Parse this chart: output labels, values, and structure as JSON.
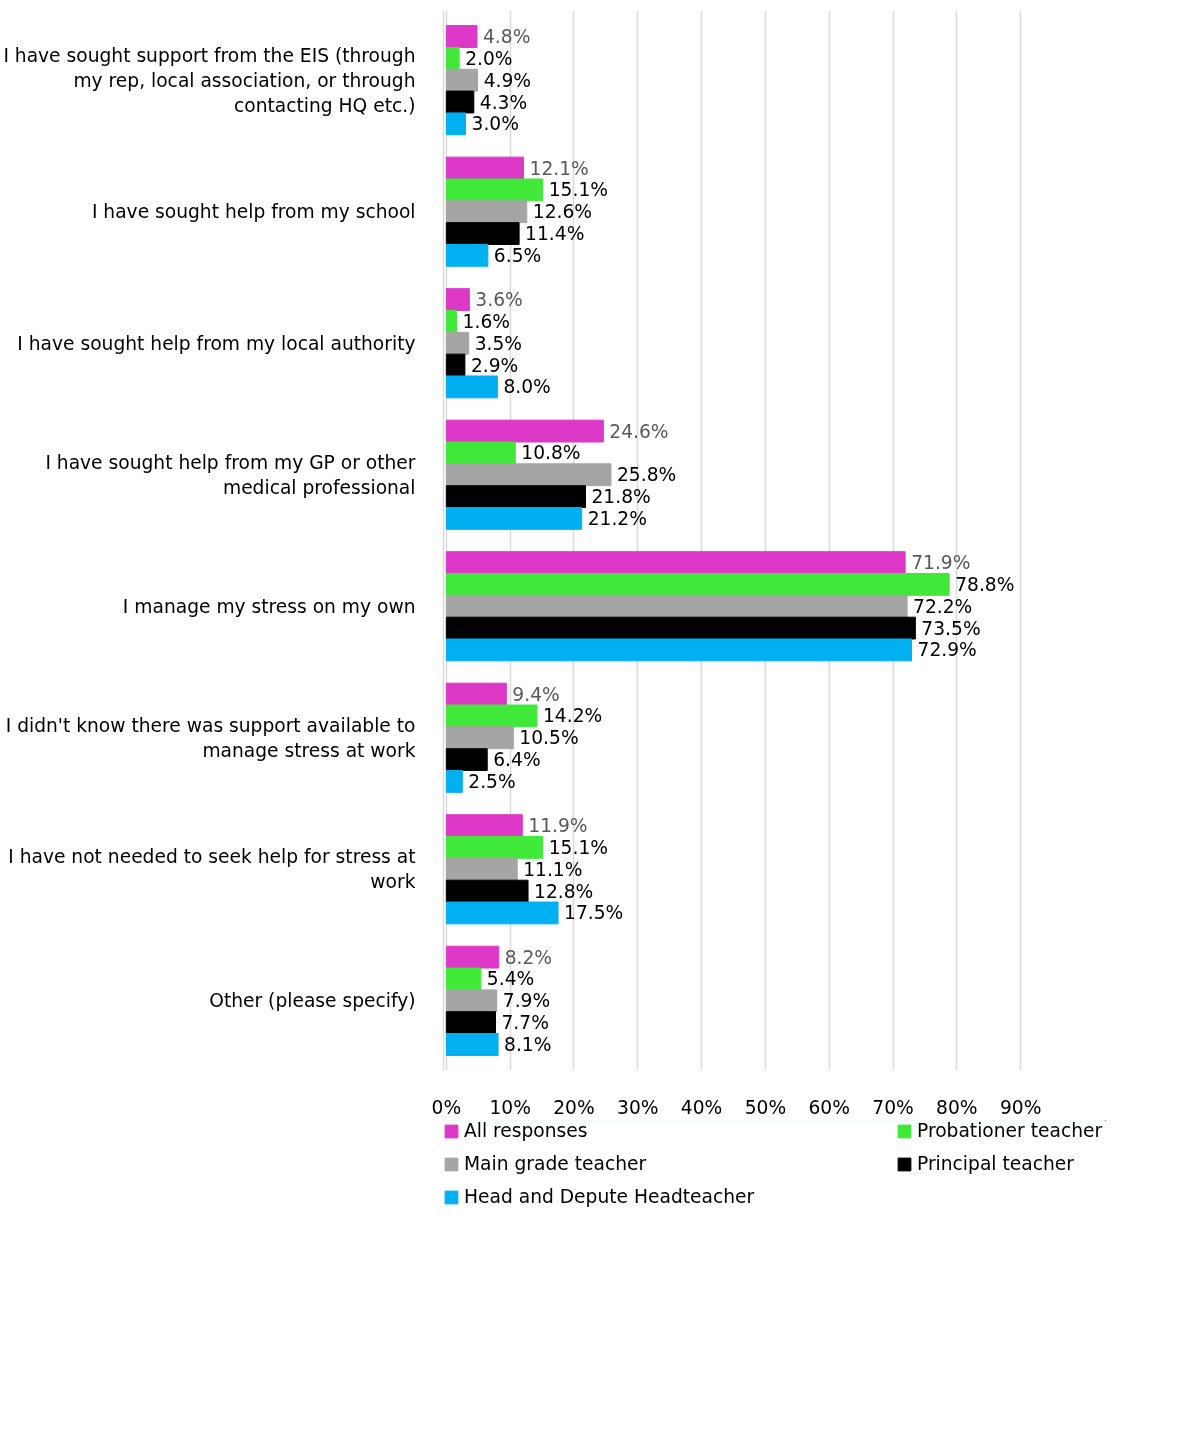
{
  "chart_data": {
    "type": "bar",
    "orientation": "horizontal",
    "categories": [
      "I have sought support from the EIS (through my rep, local association, or through contacting HQ etc.)",
      "I have sought help from my school",
      "I have sought help from my local authority",
      "I have sought help from my GP or other medical professional",
      "I manage my stress on my own",
      "I didn't know there was support available to manage stress at work",
      "I have not needed to seek help for stress at work",
      "Other (please specify)"
    ],
    "series": [
      {
        "name": "All responses",
        "color": "#dd38c8",
        "values": [
          4.8,
          12.1,
          3.6,
          24.6,
          71.9,
          9.4,
          11.9,
          8.2
        ],
        "value_labels": [
          "4.8%",
          "12.1%",
          "3.6%",
          "24.6%",
          "71.9%",
          "9.4%",
          "11.9%",
          "8.2%"
        ]
      },
      {
        "name": "Probationer teacher",
        "color": "#40e83a",
        "values": [
          2.0,
          15.1,
          1.6,
          10.8,
          78.8,
          14.2,
          15.1,
          5.4
        ],
        "value_labels": [
          "2.0%",
          "15.1%",
          "1.6%",
          "10.8%",
          "78.8%",
          "14.2%",
          "15.1%",
          "5.4%"
        ]
      },
      {
        "name": "Main grade teacher",
        "color": "#a5a5a5",
        "values": [
          4.9,
          12.6,
          3.5,
          25.8,
          72.2,
          10.5,
          11.1,
          7.9
        ],
        "value_labels": [
          "4.9%",
          "12.6%",
          "3.5%",
          "25.8%",
          "72.2%",
          "10.5%",
          "11.1%",
          "7.9%"
        ]
      },
      {
        "name": "Principal teacher",
        "color": "#000000",
        "values": [
          4.3,
          11.4,
          2.9,
          21.8,
          73.5,
          6.4,
          12.8,
          7.7
        ],
        "value_labels": [
          "4.3%",
          "11.4%",
          "2.9%",
          "21.8%",
          "73.5%",
          "6.4%",
          "12.8%",
          "7.7%"
        ]
      },
      {
        "name": "Head and Depute Headteacher",
        "color": "#00b0f0",
        "values": [
          3.0,
          6.5,
          8.0,
          21.2,
          72.9,
          2.5,
          17.5,
          8.1
        ],
        "value_labels": [
          "3.0%",
          "6.5%",
          "8.0%",
          "21.2%",
          "72.9%",
          "2.5%",
          "17.5%",
          "8.1%"
        ]
      }
    ],
    "xlim": [
      0,
      90
    ],
    "xticks": [
      {
        "value": 0,
        "label": "0%"
      },
      {
        "value": 10,
        "label": "10%"
      },
      {
        "value": 20,
        "label": "20%"
      },
      {
        "value": 30,
        "label": "30%"
      },
      {
        "value": 40,
        "label": "40%"
      },
      {
        "value": 50,
        "label": "50%"
      },
      {
        "value": 60,
        "label": "60%"
      },
      {
        "value": 70,
        "label": "70%"
      },
      {
        "value": 80,
        "label": "80%"
      },
      {
        "value": 90,
        "label": "90%"
      }
    ],
    "grid": "x",
    "legend": "bottom"
  }
}
